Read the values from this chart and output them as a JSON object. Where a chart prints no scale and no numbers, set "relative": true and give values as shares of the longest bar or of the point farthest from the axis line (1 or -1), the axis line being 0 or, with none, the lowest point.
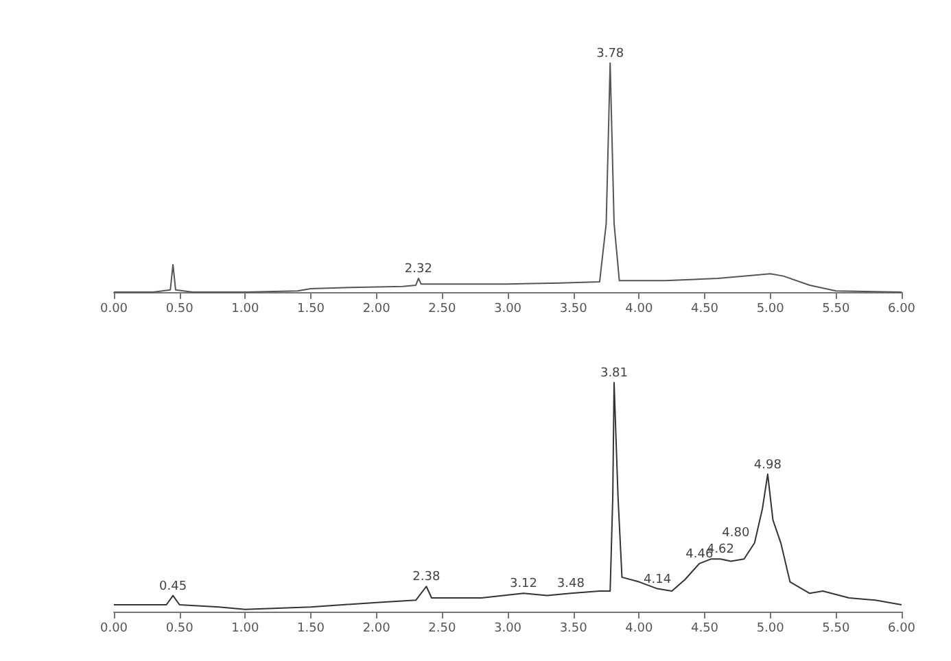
{
  "chart_data": [
    {
      "type": "line",
      "relative": true,
      "x": [
        0,
        0.3,
        0.43,
        0.45,
        0.47,
        0.6,
        1.0,
        1.4,
        1.5,
        1.8,
        2.2,
        2.3,
        2.32,
        2.34,
        2.6,
        3.0,
        3.4,
        3.7,
        3.75,
        3.78,
        3.81,
        3.85,
        4.2,
        4.6,
        4.9,
        5.0,
        5.1,
        5.3,
        5.5,
        6.0
      ],
      "values": [
        0,
        0,
        0.01,
        0.12,
        0.01,
        0,
        0,
        0.005,
        0.015,
        0.02,
        0.025,
        0.03,
        0.06,
        0.035,
        0.035,
        0.035,
        0.04,
        0.045,
        0.3,
        1,
        0.3,
        0.05,
        0.05,
        0.06,
        0.075,
        0.08,
        0.07,
        0.03,
        0.005,
        0
      ],
      "color": "#555555",
      "xlim": [
        0,
        6
      ],
      "xticks": [
        {
          "value": 0,
          "label": "0.00"
        },
        {
          "value": 0.5,
          "label": "0.50"
        },
        {
          "value": 1,
          "label": "1.00"
        },
        {
          "value": 1.5,
          "label": "1.50"
        },
        {
          "value": 2,
          "label": "2.00"
        },
        {
          "value": 2.5,
          "label": "2.50"
        },
        {
          "value": 3,
          "label": "3.00"
        },
        {
          "value": 3.5,
          "label": "3.50"
        },
        {
          "value": 4,
          "label": "4.00"
        },
        {
          "value": 4.5,
          "label": "4.50"
        },
        {
          "value": 5,
          "label": "5.00"
        },
        {
          "value": 5.5,
          "label": "5.50"
        },
        {
          "value": 6,
          "label": "6.00"
        }
      ],
      "grid": false,
      "marker": "none",
      "annotations": [
        {
          "text": "2.32",
          "x": 2.32,
          "y": 0.06
        },
        {
          "text": "3.78",
          "x": 3.78,
          "y": 1
        }
      ]
    },
    {
      "type": "line",
      "relative": true,
      "x": [
        0,
        0.2,
        0.4,
        0.45,
        0.5,
        0.8,
        1.0,
        1.5,
        2.0,
        2.3,
        2.38,
        2.42,
        2.8,
        3.12,
        3.3,
        3.48,
        3.7,
        3.78,
        3.8,
        3.81,
        3.84,
        3.87,
        4.0,
        4.14,
        4.25,
        4.35,
        4.46,
        4.55,
        4.62,
        4.7,
        4.8,
        4.88,
        4.94,
        4.98,
        5.02,
        5.08,
        5.15,
        5.3,
        5.4,
        5.6,
        5.8,
        6.0
      ],
      "values": [
        0.03,
        0.03,
        0.03,
        0.07,
        0.03,
        0.02,
        0.01,
        0.02,
        0.04,
        0.05,
        0.11,
        0.06,
        0.06,
        0.08,
        0.07,
        0.08,
        0.09,
        0.09,
        0.5,
        1,
        0.5,
        0.15,
        0.13,
        0.1,
        0.09,
        0.14,
        0.21,
        0.23,
        0.23,
        0.22,
        0.23,
        0.3,
        0.45,
        0.6,
        0.4,
        0.3,
        0.13,
        0.08,
        0.09,
        0.06,
        0.05,
        0.03
      ],
      "color": "#333333",
      "xlim": [
        0,
        6
      ],
      "xticks": [
        {
          "value": 0,
          "label": "0.00"
        },
        {
          "value": 0.5,
          "label": "0.50"
        },
        {
          "value": 1,
          "label": "1.00"
        },
        {
          "value": 1.5,
          "label": "1.50"
        },
        {
          "value": 2,
          "label": "2.00"
        },
        {
          "value": 2.5,
          "label": "2.50"
        },
        {
          "value": 3,
          "label": "3.00"
        },
        {
          "value": 3.5,
          "label": "3.50"
        },
        {
          "value": 4,
          "label": "4.00"
        },
        {
          "value": 4.5,
          "label": "4.50"
        },
        {
          "value": 5,
          "label": "5.00"
        },
        {
          "value": 5.5,
          "label": "5.50"
        },
        {
          "value": 6,
          "label": "6.00"
        }
      ],
      "grid": false,
      "marker": "none",
      "annotations": [
        {
          "text": "0.45",
          "x": 0.45,
          "y": 0.07
        },
        {
          "text": "2.38",
          "x": 2.38,
          "y": 0.11
        },
        {
          "text": "3.12",
          "x": 3.12,
          "y": 0.08
        },
        {
          "text": "3.48",
          "x": 3.48,
          "y": 0.08
        },
        {
          "text": "3.81",
          "x": 3.81,
          "y": 1
        },
        {
          "text": "4.14",
          "x": 4.14,
          "y": 0.1
        },
        {
          "text": "4.46",
          "x": 4.46,
          "y": 0.21
        },
        {
          "text": "4.62",
          "x": 4.62,
          "y": 0.23
        },
        {
          "text": "4.80",
          "x": 4.8,
          "y": 0.23
        },
        {
          "text": "4.98",
          "x": 4.98,
          "y": 0.6
        }
      ]
    }
  ]
}
